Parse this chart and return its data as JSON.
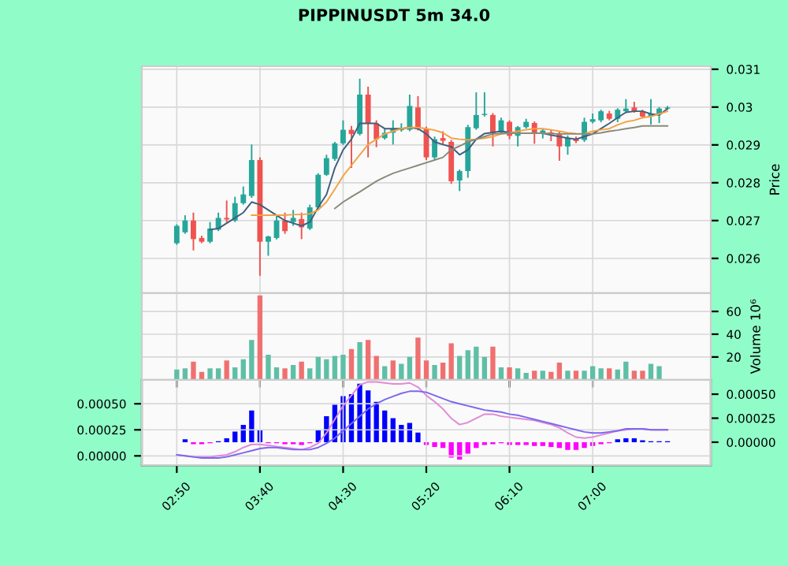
{
  "chart_data": [
    {
      "type": "candlestick",
      "title": "PIPPINUSDT 5m 34.0",
      "categories": [
        null,
        null,
        null,
        null,
        null,
        null,
        null,
        null,
        null,
        null,
        null,
        null,
        null,
        null,
        null,
        null,
        null,
        null,
        null,
        null,
        null,
        null,
        null,
        null,
        null,
        null,
        null,
        null,
        null,
        null,
        null,
        null,
        null,
        null,
        null,
        null,
        null,
        null,
        null,
        null,
        null,
        null,
        null,
        null,
        null,
        null,
        null,
        null,
        null,
        null,
        null,
        null,
        null,
        null,
        null,
        null,
        null,
        null,
        null,
        null
      ],
      "ohlc": [
        [
          0.0264,
          0.0269,
          0.02636,
          0.02686
        ],
        [
          0.02669,
          0.02714,
          0.02665,
          0.027
        ],
        [
          0.027,
          0.02721,
          0.02621,
          0.02651
        ],
        [
          0.02654,
          0.0266,
          0.0264,
          0.02644
        ],
        [
          0.02644,
          0.02696,
          0.0264,
          0.02679
        ],
        [
          0.02676,
          0.02721,
          0.02672,
          0.02707
        ],
        [
          0.02707,
          0.02753,
          0.02696,
          0.02703
        ],
        [
          0.027,
          0.02763,
          0.02696,
          0.02746
        ],
        [
          0.02746,
          0.0279,
          0.02742,
          0.02769
        ],
        [
          0.02765,
          0.02901,
          0.0276,
          0.0286
        ],
        [
          0.0286,
          0.02867,
          0.02554,
          0.02644
        ],
        [
          0.02644,
          0.0266,
          0.02607,
          0.02658
        ],
        [
          0.02654,
          0.02714,
          0.0265,
          0.027
        ],
        [
          0.027,
          0.02721,
          0.02665,
          0.02672
        ],
        [
          0.02696,
          0.02728,
          0.02686,
          0.02707
        ],
        [
          0.02704,
          0.02721,
          0.02651,
          0.02682
        ],
        [
          0.02679,
          0.02742,
          0.02675,
          0.02735
        ],
        [
          0.02735,
          0.02825,
          0.0273,
          0.02821
        ],
        [
          0.02821,
          0.02874,
          0.02818,
          0.02865
        ],
        [
          0.02863,
          0.02908,
          0.02858,
          0.02904
        ],
        [
          0.02904,
          0.02965,
          0.029,
          0.0294
        ],
        [
          0.0294,
          0.0295,
          0.02839,
          0.02929
        ],
        [
          0.02929,
          0.03075,
          0.02925,
          0.03033
        ],
        [
          0.03033,
          0.03054,
          0.02867,
          0.02957
        ],
        [
          0.02957,
          0.02965,
          0.02894,
          0.02915
        ],
        [
          0.02918,
          0.02943,
          0.02914,
          0.02932
        ],
        [
          0.02932,
          0.02965,
          0.02901,
          0.02943
        ],
        [
          0.02939,
          0.02957,
          0.02935,
          0.02943
        ],
        [
          0.0294,
          0.03033,
          0.02936,
          0.03003
        ],
        [
          0.02999,
          0.03029,
          0.02938,
          0.02943
        ],
        [
          0.02943,
          0.02948,
          0.0286,
          0.02867
        ],
        [
          0.02867,
          0.02922,
          0.02862,
          0.02915
        ],
        [
          0.02918,
          0.02936,
          0.02901,
          0.02911
        ],
        [
          0.02908,
          0.02913,
          0.02797,
          0.02804
        ],
        [
          0.02806,
          0.02835,
          0.02778,
          0.02831
        ],
        [
          0.02831,
          0.02953,
          0.02813,
          0.02947
        ],
        [
          0.02944,
          0.03039,
          0.0294,
          0.02979
        ],
        [
          0.02979,
          0.03039,
          0.02975,
          0.02982
        ],
        [
          0.02979,
          0.02984,
          0.02896,
          0.02931
        ],
        [
          0.02933,
          0.02972,
          0.02929,
          0.02965
        ],
        [
          0.02961,
          0.02965,
          0.02915,
          0.02924
        ],
        [
          0.02924,
          0.0295,
          0.02896,
          0.02947
        ],
        [
          0.02947,
          0.02969,
          0.02943,
          0.02961
        ],
        [
          0.02958,
          0.02962,
          0.02903,
          0.02931
        ],
        [
          0.02931,
          0.02943,
          0.02917,
          0.02938
        ],
        [
          0.02933,
          0.0294,
          0.0291,
          0.02928
        ],
        [
          0.02931,
          0.02936,
          0.02858,
          0.02896
        ],
        [
          0.02896,
          0.02925,
          0.02874,
          0.02919
        ],
        [
          0.02917,
          0.02922,
          0.02905,
          0.0291
        ],
        [
          0.02913,
          0.02972,
          0.02908,
          0.02961
        ],
        [
          0.02961,
          0.02983,
          0.02957,
          0.02968
        ],
        [
          0.02965,
          0.02993,
          0.0296,
          0.02989
        ],
        [
          0.02983,
          0.0299,
          0.02965,
          0.02969
        ],
        [
          0.02969,
          0.02997,
          0.0296,
          0.02993
        ],
        [
          0.02989,
          0.03021,
          0.02985,
          0.02996
        ],
        [
          0.02999,
          0.03014,
          0.02985,
          0.02989
        ],
        [
          0.02989,
          0.02993,
          0.0297,
          0.02975
        ],
        [
          0.02975,
          0.03021,
          0.02954,
          0.02983
        ],
        [
          0.02982,
          0.03,
          0.02958,
          0.02996
        ],
        [
          0.02996,
          0.03003,
          0.02993,
          0.02999
        ]
      ],
      "colors": [
        "#26a69a",
        "#26a69a",
        "#ef5350",
        "#ef5350",
        "#26a69a",
        "#26a69a",
        "#ef5350",
        "#26a69a",
        "#26a69a",
        "#26a69a",
        "#ef5350",
        "#26a69a",
        "#26a69a",
        "#ef5350",
        "#26a69a",
        "#ef5350",
        "#26a69a",
        "#26a69a",
        "#26a69a",
        "#26a69a",
        "#26a69a",
        "#ef5350",
        "#26a69a",
        "#ef5350",
        "#ef5350",
        "#26a69a",
        "#26a69a",
        "#26a69a",
        "#26a69a",
        "#ef5350",
        "#ef5350",
        "#26a69a",
        "#ef5350",
        "#ef5350",
        "#26a69a",
        "#26a69a",
        "#26a69a",
        "#26a69a",
        "#ef5350",
        "#26a69a",
        "#ef5350",
        "#26a69a",
        "#26a69a",
        "#ef5350",
        "#26a69a",
        "#ef5350",
        "#ef5350",
        "#26a69a",
        "#ef5350",
        "#26a69a",
        "#26a69a",
        "#26a69a",
        "#ef5350",
        "#26a69a",
        "#26a69a",
        "#ef5350",
        "#ef5350",
        "#26a69a",
        "#26a69a",
        "#26a69a"
      ],
      "series": [
        {
          "type": "line",
          "color": "#3f5f7f",
          "values": [
            null,
            null,
            null,
            null,
            0.02676,
            0.02679,
            0.02693,
            0.02707,
            0.02721,
            0.02749,
            0.02742,
            0.02728,
            0.02714,
            0.027,
            0.02693,
            0.02686,
            0.02696,
            0.02735,
            0.02769,
            0.02839,
            0.02887,
            0.02915,
            0.02957,
            0.02957,
            0.02957,
            0.02943,
            0.02943,
            0.02943,
            0.02946,
            0.02943,
            0.02929,
            0.02908,
            0.02901,
            0.02895,
            0.02874,
            0.02887,
            0.02915,
            0.0293,
            0.02933,
            0.02936,
            0.02933,
            0.02931,
            0.02931,
            0.02931,
            0.02931,
            0.02926,
            0.02922,
            0.02918,
            0.02915,
            0.02922,
            0.02929,
            0.02943,
            0.02957,
            0.02972,
            0.02986,
            0.02989,
            0.02989,
            0.02982,
            0.02979,
            0.02996
          ]
        },
        {
          "type": "line",
          "color": "#f5a142",
          "values": [
            null,
            null,
            null,
            null,
            null,
            null,
            null,
            null,
            null,
            0.02714,
            0.02714,
            0.02714,
            0.02714,
            0.02714,
            0.02716,
            0.02716,
            0.02718,
            0.02728,
            0.02749,
            0.02783,
            0.02818,
            0.02846,
            0.02874,
            0.02901,
            0.02915,
            0.02929,
            0.02936,
            0.02943,
            0.02946,
            0.02946,
            0.02943,
            0.02939,
            0.02932,
            0.02918,
            0.02915,
            0.02913,
            0.02915,
            0.02918,
            0.02922,
            0.02929,
            0.02932,
            0.02936,
            0.0294,
            0.02943,
            0.02943,
            0.0294,
            0.02936,
            0.02932,
            0.0293,
            0.02929,
            0.02936,
            0.0294,
            0.02943,
            0.02953,
            0.02961,
            0.02965,
            0.02972,
            0.02975,
            0.02982,
            0.02989
          ]
        },
        {
          "type": "line",
          "color": "#8a8a7a",
          "values": [
            null,
            null,
            null,
            null,
            null,
            null,
            null,
            null,
            null,
            null,
            null,
            null,
            null,
            null,
            null,
            null,
            null,
            null,
            null,
            0.02732,
            0.02749,
            0.02763,
            0.02776,
            0.0279,
            0.02804,
            0.02815,
            0.02825,
            0.02832,
            0.02839,
            0.02846,
            0.02853,
            0.0286,
            0.02867,
            0.02887,
            0.02897,
            0.02908,
            0.02915,
            0.02922,
            0.02929,
            0.0293,
            0.02931,
            0.02931,
            0.02931,
            0.02931,
            0.02931,
            0.0293,
            0.02929,
            0.02929,
            0.02929,
            0.02929,
            0.02929,
            0.02932,
            0.02936,
            0.02939,
            0.02943,
            0.02946,
            0.0295,
            0.0295,
            0.0295,
            0.0295
          ]
        }
      ],
      "ylabel": "Price",
      "ylim": [
        0.02508,
        0.03108
      ],
      "yticks": [
        0.026,
        0.027,
        0.028,
        0.029,
        0.03,
        0.031
      ],
      "grid": true,
      "tick_labels": "y"
    },
    {
      "type": "bar",
      "categories": [
        null,
        null,
        null,
        null,
        null,
        null,
        null,
        null,
        null,
        null,
        null,
        null,
        null,
        null,
        null,
        null,
        null,
        null,
        null,
        null,
        null,
        null,
        null,
        null,
        null,
        null,
        null,
        null,
        null,
        null,
        null,
        null,
        null,
        null,
        null,
        null,
        null,
        null,
        null,
        null,
        null,
        null,
        null,
        null,
        null,
        null,
        null,
        null,
        null,
        null,
        null,
        null,
        null,
        null,
        null,
        null,
        null,
        null,
        null,
        null
      ],
      "values": [
        9,
        10,
        16,
        7,
        10,
        10,
        17,
        11,
        18,
        35,
        74,
        22,
        11,
        10,
        13,
        16,
        10,
        20,
        18,
        21,
        22,
        27,
        33,
        35,
        21,
        12,
        17,
        14,
        20,
        37,
        17,
        13,
        15,
        32,
        21,
        26,
        29,
        20,
        29,
        11,
        11,
        10,
        6,
        8,
        8,
        7,
        15,
        8,
        8,
        8,
        12,
        10,
        10,
        9,
        16,
        8,
        8,
        14,
        12,
        null
      ],
      "colors": [
        "#5fbfa6",
        "#5fbfa6",
        "#f07070",
        "#f07070",
        "#5fbfa6",
        "#5fbfa6",
        "#f07070",
        "#5fbfa6",
        "#5fbfa6",
        "#5fbfa6",
        "#f07070",
        "#5fbfa6",
        "#5fbfa6",
        "#f07070",
        "#5fbfa6",
        "#f07070",
        "#5fbfa6",
        "#5fbfa6",
        "#5fbfa6",
        "#5fbfa6",
        "#5fbfa6",
        "#f07070",
        "#5fbfa6",
        "#f07070",
        "#f07070",
        "#5fbfa6",
        "#f07070",
        "#5fbfa6",
        "#5fbfa6",
        "#f07070",
        "#f07070",
        "#5fbfa6",
        "#f07070",
        "#f07070",
        "#5fbfa6",
        "#5fbfa6",
        "#5fbfa6",
        "#5fbfa6",
        "#f07070",
        "#5fbfa6",
        "#f07070",
        "#5fbfa6",
        "#5fbfa6",
        "#f07070",
        "#5fbfa6",
        "#f07070",
        "#f07070",
        "#5fbfa6",
        "#f07070",
        "#5fbfa6",
        "#5fbfa6",
        "#5fbfa6",
        "#f07070",
        "#5fbfa6",
        "#5fbfa6",
        "#f07070",
        "#f07070",
        "#5fbfa6",
        "#5fbfa6",
        "#5fbfa6"
      ],
      "ylabel": "Volume 10⁶",
      "ylim": [
        0,
        76
      ],
      "yticks": [
        20,
        40,
        60
      ],
      "grid": true,
      "tick_labels": "y"
    },
    {
      "type": "bar",
      "categories": [
        "02:50",
        null,
        null,
        null,
        null,
        null,
        null,
        null,
        null,
        null,
        "03:40",
        null,
        null,
        null,
        null,
        null,
        null,
        null,
        null,
        null,
        "04:30",
        null,
        null,
        null,
        null,
        null,
        null,
        null,
        null,
        null,
        "05:20",
        null,
        null,
        null,
        null,
        null,
        null,
        null,
        null,
        null,
        "06:10",
        null,
        null,
        null,
        null,
        null,
        null,
        null,
        null,
        null,
        "07:00",
        null,
        null,
        null,
        null,
        null,
        null,
        null,
        null,
        null
      ],
      "series": [
        {
          "type": "bar",
          "axis": "y2",
          "values": [
            null,
            3e-05,
            -2e-05,
            -2e-05,
            -1e-05,
            1e-05,
            4e-05,
            0.00011,
            0.00018,
            0.00033,
            0.00013,
            -1e-05,
            -1e-05,
            -2e-05,
            -2e-05,
            -3e-05,
            -1e-05,
            0.00013,
            0.00027,
            0.00039,
            0.00048,
            0.0005,
            0.00061,
            0.00054,
            0.00042,
            0.00033,
            0.00025,
            0.00018,
            0.0002,
            0.0001,
            -3e-05,
            -5e-05,
            -6e-05,
            -0.00016,
            -0.00018,
            -0.00012,
            -6e-05,
            -3e-05,
            -2e-05,
            -1e-05,
            -3e-05,
            -3e-05,
            -3e-05,
            -4e-05,
            -4e-05,
            -5e-05,
            -6e-05,
            -8e-05,
            -8e-05,
            -6e-05,
            -4e-05,
            -2e-05,
            -1e-05,
            3e-05,
            4e-05,
            4e-05,
            2e-05,
            1e-05,
            1e-05,
            1e-05
          ],
          "colors": [
            "#0000ff",
            "#0000ff",
            "#ff00ff",
            "#ff00ff",
            "#ff00ff",
            "#0000ff",
            "#0000ff",
            "#0000ff",
            "#0000ff",
            "#0000ff",
            "#0000ff",
            "#ff00ff",
            "#ff00ff",
            "#ff00ff",
            "#ff00ff",
            "#ff00ff",
            "#ff00ff",
            "#0000ff",
            "#0000ff",
            "#0000ff",
            "#0000ff",
            "#0000ff",
            "#0000ff",
            "#0000ff",
            "#0000ff",
            "#0000ff",
            "#0000ff",
            "#0000ff",
            "#0000ff",
            "#0000ff",
            "#ff00ff",
            "#ff00ff",
            "#ff00ff",
            "#ff00ff",
            "#ff00ff",
            "#ff00ff",
            "#ff00ff",
            "#ff00ff",
            "#ff00ff",
            "#ff00ff",
            "#ff00ff",
            "#ff00ff",
            "#ff00ff",
            "#ff00ff",
            "#ff00ff",
            "#ff00ff",
            "#ff00ff",
            "#ff00ff",
            "#ff00ff",
            "#ff00ff",
            "#ff00ff",
            "#ff00ff",
            "#ff00ff",
            "#0000ff",
            "#0000ff",
            "#0000ff",
            "#0000ff",
            "#0000ff",
            "#0000ff",
            "#0000ff"
          ]
        },
        {
          "type": "line",
          "color": "#e08ad8",
          "values": [
            1e-05,
            0,
            -1e-05,
            -1e-05,
            -1e-05,
            0,
            1e-05,
            4e-05,
            8e-05,
            0.00011,
            0.00011,
            0.0001,
            9e-05,
            8e-05,
            7e-05,
            6e-05,
            8e-05,
            0.00012,
            0.00022,
            0.00035,
            0.00048,
            0.00058,
            0.00068,
            0.00071,
            0.00071,
            0.0007,
            0.00069,
            0.00069,
            0.0007,
            0.00066,
            0.00058,
            0.00052,
            0.00045,
            0.00036,
            0.0003,
            0.00032,
            0.00036,
            0.0004,
            0.0004,
            0.00038,
            0.00037,
            0.00036,
            0.00035,
            0.00034,
            0.00032,
            0.0003,
            0.00027,
            0.00022,
            0.00018,
            0.00017,
            0.00018,
            0.0002,
            0.00022,
            0.00024,
            0.00025,
            0.00026,
            0.00026,
            0.00025,
            0.00025,
            0.00025
          ]
        },
        {
          "type": "line",
          "color": "#7b68ee",
          "values": [
            1e-05,
            0,
            -1e-05,
            -2e-05,
            -2e-05,
            -2e-05,
            -1e-05,
            1e-05,
            3e-05,
            5e-05,
            7e-05,
            8e-05,
            8e-05,
            7e-05,
            6e-05,
            6e-05,
            6e-05,
            8e-05,
            0.00012,
            0.00017,
            0.00024,
            0.00031,
            0.00038,
            0.00045,
            0.0005,
            0.00054,
            0.00057,
            0.0006,
            0.00062,
            0.00062,
            0.00061,
            0.00058,
            0.00055,
            0.00052,
            0.0005,
            0.00048,
            0.00046,
            0.00044,
            0.00043,
            0.00042,
            0.0004,
            0.00039,
            0.00037,
            0.00035,
            0.00033,
            0.00031,
            0.00029,
            0.00027,
            0.00025,
            0.00023,
            0.00022,
            0.00022,
            0.00023,
            0.00024,
            0.00026,
            0.00026,
            0.00026,
            0.00025,
            0.00025,
            0.00025
          ]
        }
      ],
      "ylim": [
        -9e-05,
        0.00073
      ],
      "yticks": [
        {
          "value": 0,
          "label": "0.00000"
        },
        {
          "value": 0.00025,
          "label": "0.00025"
        },
        {
          "value": 0.0005,
          "label": "0.00050"
        }
      ],
      "y2lim": [
        -0.00024,
        0.00065
      ],
      "y2ticks": [
        {
          "value": 0,
          "label": "0.00000"
        },
        {
          "value": 0.00025,
          "label": "0.00025"
        },
        {
          "value": 0.0005,
          "label": "0.00050"
        }
      ],
      "grid": true
    }
  ]
}
